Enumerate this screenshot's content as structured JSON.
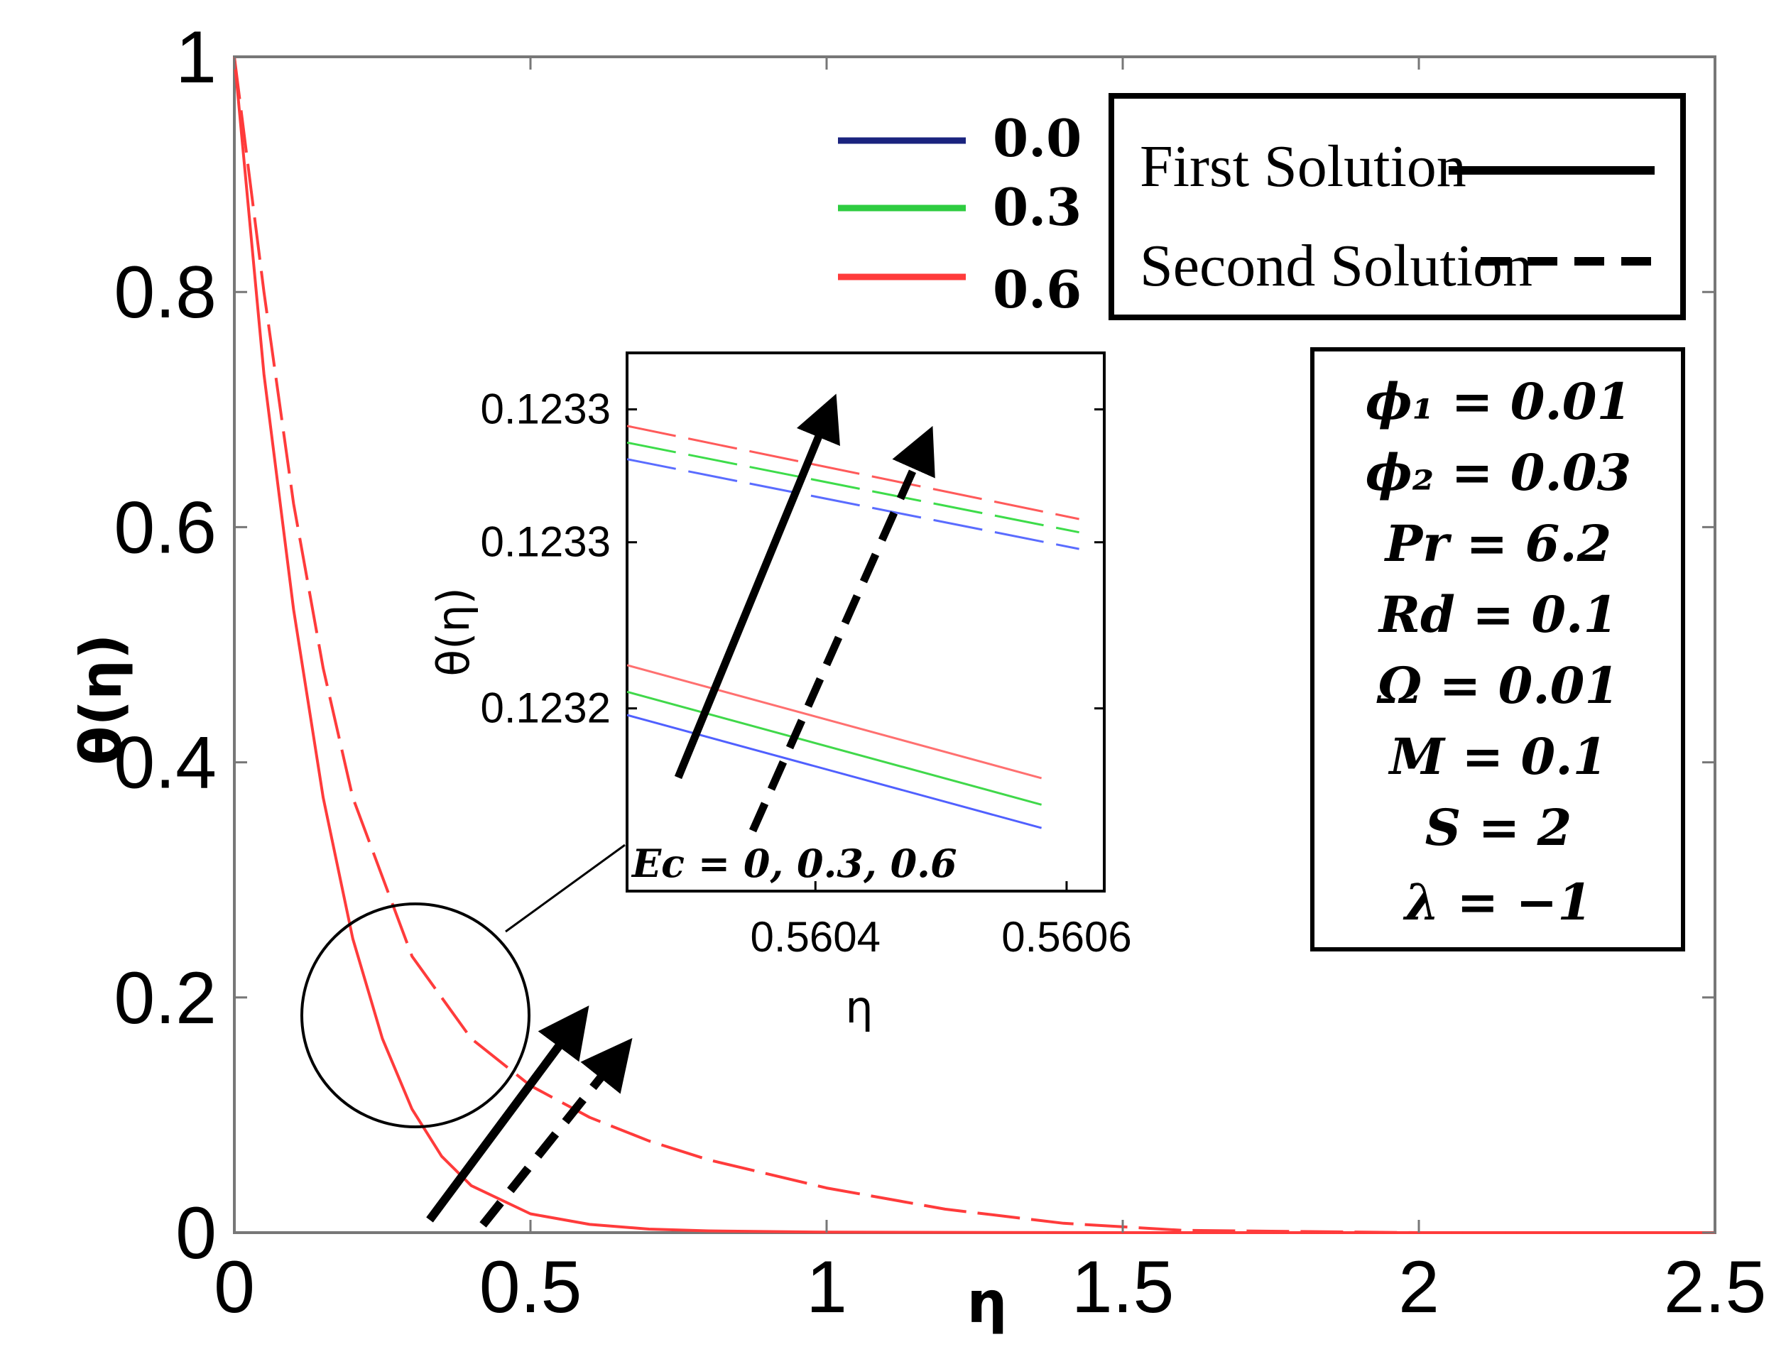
{
  "chart_data": {
    "type": "line",
    "title": "",
    "xlabel": "η",
    "ylabel": "θ(η)",
    "xlim": [
      0,
      2.5
    ],
    "ylim": [
      0,
      1
    ],
    "x_ticks": [
      "0",
      "0.5",
      "1",
      "1.5",
      "2",
      "2.5"
    ],
    "y_ticks": [
      "0",
      "0.2",
      "0.4",
      "0.6",
      "0.8",
      "1"
    ],
    "grid": false,
    "legend_ec": {
      "items": [
        {
          "label": "0.0",
          "color": "#1a237e"
        },
        {
          "label": "0.3",
          "color": "#2ecc40"
        },
        {
          "label": "0.6",
          "color": "#ff3b3b"
        }
      ]
    },
    "legend_solution": {
      "first": "First Solution",
      "second": "Second Solution"
    },
    "parameters": [
      "ϕ₁ = 0.01",
      "ϕ₂ = 0.03",
      "Pr = 6.2",
      "Rd = 0.1",
      "Ω = 0.01",
      "M = 0.1",
      "S = 2",
      "λ = −1"
    ],
    "series": [
      {
        "name": "First Solution (Ec = 0.6)",
        "style": "solid",
        "color": "#ff3b3b",
        "x": [
          0,
          0.05,
          0.1,
          0.15,
          0.2,
          0.25,
          0.3,
          0.35,
          0.4,
          0.5,
          0.6,
          0.7,
          0.8,
          1.0,
          1.5,
          2.0,
          2.5
        ],
        "y": [
          1,
          0.73,
          0.53,
          0.37,
          0.25,
          0.165,
          0.105,
          0.065,
          0.04,
          0.016,
          0.007,
          0.003,
          0.0015,
          0.0004,
          0.0,
          0.0,
          0.0
        ]
      },
      {
        "name": "Second Solution (Ec = 0.6)",
        "style": "dashed",
        "color": "#ff3b3b",
        "x": [
          0,
          0.05,
          0.1,
          0.15,
          0.2,
          0.3,
          0.4,
          0.5,
          0.6,
          0.7,
          0.8,
          1.0,
          1.2,
          1.4,
          1.6,
          2.0,
          2.5
        ],
        "y": [
          1,
          0.8,
          0.62,
          0.48,
          0.37,
          0.235,
          0.165,
          0.125,
          0.098,
          0.078,
          0.062,
          0.038,
          0.02,
          0.008,
          0.002,
          0.0,
          0.0
        ]
      }
    ],
    "inset": {
      "xlabel": "η",
      "ylabel": "θ(η)",
      "x_ticks": [
        "0.5604",
        "0.5606"
      ],
      "y_ticks": [
        "0.1233",
        "0.1233",
        "0.1232"
      ],
      "xlim": [
        0.56025,
        0.56063
      ],
      "ylim": [
        0.123185,
        0.123347
      ],
      "annotation": "Ec = 0, 0.3, 0.6",
      "series": [
        {
          "name": "Second Ec=0.6",
          "style": "dashed",
          "color": "#ff5a5a",
          "x": [
            0.56025,
            0.56061
          ],
          "y": [
            0.123325,
            0.123297
          ]
        },
        {
          "name": "Second Ec=0.3",
          "style": "dashed",
          "color": "#3ddc4a",
          "x": [
            0.56025,
            0.56061
          ],
          "y": [
            0.12332,
            0.123293
          ]
        },
        {
          "name": "Second Ec=0.0",
          "style": "dashed",
          "color": "#5a6cff",
          "x": [
            0.56025,
            0.56061
          ],
          "y": [
            0.123315,
            0.123288
          ]
        },
        {
          "name": "First Ec=0.6",
          "style": "solid",
          "color": "#ff7070",
          "x": [
            0.56025,
            0.56058
          ],
          "y": [
            0.123253,
            0.123219
          ]
        },
        {
          "name": "First Ec=0.3",
          "style": "solid",
          "color": "#40d84a",
          "x": [
            0.56025,
            0.56058
          ],
          "y": [
            0.123245,
            0.123211
          ]
        },
        {
          "name": "First Ec=0.0",
          "style": "solid",
          "color": "#5060ff",
          "x": [
            0.56025,
            0.56058
          ],
          "y": [
            0.123238,
            0.123204
          ]
        }
      ]
    }
  }
}
